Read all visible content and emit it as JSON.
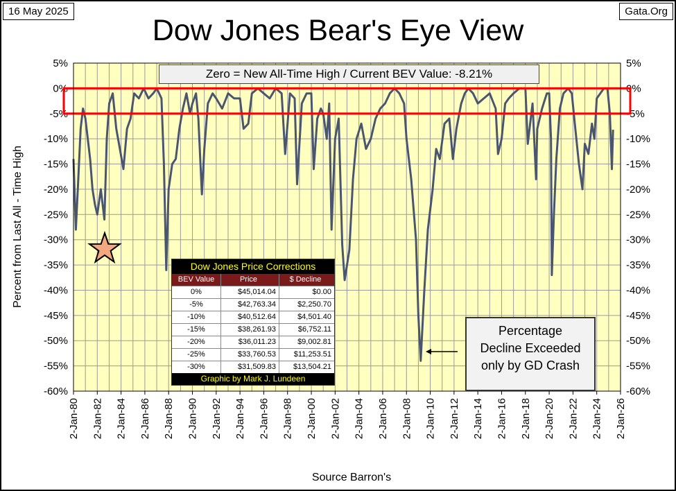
{
  "header": {
    "date": "16 May 2025",
    "site": "Gata.Org",
    "title": "Dow Jones Bear's Eye View"
  },
  "bev_note": "Zero = New All-Time High / Current BEV Value:  -8.21%",
  "callout": [
    "Percentage",
    "Decline Exceeded",
    "only by GD Crash"
  ],
  "source": "Source Barron's",
  "table": {
    "title": "Dow Jones Price Corrections",
    "headers": [
      "BEV Value",
      "Price",
      "$ Decline"
    ],
    "rows": [
      [
        "0%",
        "$45,014.04",
        "$0.00"
      ],
      [
        "-5%",
        "$42,763.34",
        "$2,250.70"
      ],
      [
        "-10%",
        "$40,512.64",
        "$4,501.40"
      ],
      [
        "-15%",
        "$38,261.93",
        "$6,752.11"
      ],
      [
        "-20%",
        "$36,011.23",
        "$9,002.81"
      ],
      [
        "-25%",
        "$33,760.53",
        "$11,253.51"
      ],
      [
        "-30%",
        "$31,509.83",
        "$13,504.21"
      ]
    ],
    "footer": "Graphic by Mark J. Lundeen"
  },
  "chart_data": {
    "type": "line",
    "ylabel": "Percent from  Last  All - Time  High",
    "xlabel": "Source Barron's",
    "ylim": [
      -60,
      5
    ],
    "yticks": [
      "5%",
      "0%",
      "-5%",
      "-10%",
      "-15%",
      "-20%",
      "-25%",
      "-30%",
      "-35%",
      "-40%",
      "-45%",
      "-50%",
      "-55%",
      "-60%"
    ],
    "xlim": [
      1980,
      2026
    ],
    "xticks": [
      "2-Jan-80",
      "2-Jan-82",
      "2-Jan-84",
      "2-Jan-86",
      "2-Jan-88",
      "2-Jan-90",
      "2-Jan-92",
      "2-Jan-94",
      "2-Jan-96",
      "2-Jan-98",
      "2-Jan-00",
      "2-Jan-02",
      "2-Jan-04",
      "2-Jan-06",
      "2-Jan-08",
      "2-Jan-10",
      "2-Jan-12",
      "2-Jan-14",
      "2-Jan-16",
      "2-Jan-18",
      "2-Jan-20",
      "2-Jan-22",
      "2-Jan-24",
      "2-Jan-26"
    ],
    "grid": true,
    "highlight_band": [
      -5,
      0
    ],
    "series": [
      {
        "x": [
          1980.0,
          1980.2,
          1980.4,
          1980.6,
          1980.8,
          1981.0,
          1981.2,
          1981.4,
          1981.6,
          1981.8,
          1982.0,
          1982.3,
          1982.6,
          1982.8,
          1983.0,
          1983.3,
          1983.6,
          1983.9,
          1984.2,
          1984.5,
          1984.8,
          1985.1,
          1985.5,
          1985.9,
          1986.3,
          1986.7,
          1987.0,
          1987.4,
          1987.6,
          1987.8,
          1988.0,
          1988.3,
          1988.6,
          1988.9,
          1989.2,
          1989.5,
          1989.8,
          1990.0,
          1990.3,
          1990.5,
          1990.8,
          1991.0,
          1991.3,
          1991.7,
          1992.0,
          1992.5,
          1993.0,
          1993.5,
          1994.0,
          1994.3,
          1994.7,
          1995.0,
          1995.5,
          1996.0,
          1996.5,
          1997.0,
          1997.5,
          1997.8,
          1998.2,
          1998.6,
          1998.8,
          1999.2,
          1999.6,
          2000.0,
          2000.2,
          2000.5,
          2000.8,
          2001.0,
          2001.3,
          2001.5,
          2001.7,
          2002.0,
          2002.3,
          2002.6,
          2002.8,
          2003.0,
          2003.2,
          2003.5,
          2003.8,
          2004.2,
          2004.6,
          2005.0,
          2005.4,
          2005.8,
          2006.2,
          2006.6,
          2007.0,
          2007.4,
          2007.8,
          2008.0,
          2008.4,
          2008.8,
          2009.0,
          2009.2,
          2009.5,
          2009.8,
          2010.2,
          2010.5,
          2010.8,
          2011.2,
          2011.6,
          2011.9,
          2012.2,
          2012.6,
          2012.9,
          2013.2,
          2013.6,
          2014.0,
          2014.5,
          2015.0,
          2015.5,
          2015.7,
          2016.0,
          2016.3,
          2016.6,
          2017.0,
          2017.5,
          2018.0,
          2018.2,
          2018.6,
          2018.9,
          2019.0,
          2019.4,
          2019.8,
          2020.0,
          2020.15,
          2020.22,
          2020.4,
          2020.6,
          2020.9,
          2021.2,
          2021.6,
          2021.9,
          2022.2,
          2022.5,
          2022.8,
          2023.0,
          2023.3,
          2023.6,
          2023.8,
          2024.0,
          2024.3,
          2024.6,
          2024.9,
          2025.1,
          2025.27,
          2025.37
        ],
        "y": [
          -14,
          -28,
          -18,
          -8,
          -4,
          -6,
          -10,
          -14,
          -20,
          -23,
          -25,
          -20,
          -26,
          -10,
          -3,
          -1,
          -8,
          -12,
          -16,
          -8,
          -6,
          -1,
          -2,
          0,
          -2,
          -1,
          0,
          -2,
          -15,
          -36,
          -20,
          -15,
          -14,
          -8,
          -4,
          -1,
          -5,
          -3,
          -1,
          -6,
          -21,
          -12,
          -3,
          -1,
          -2,
          -4,
          -1,
          -2,
          -2,
          -8,
          -7,
          -1,
          0,
          -1,
          -2,
          0,
          -1,
          -13,
          -1,
          -2,
          -19,
          -3,
          -1,
          -1,
          -16,
          -6,
          -4,
          -5,
          -10,
          -3,
          -28,
          -10,
          -6,
          -31,
          -38,
          -35,
          -32,
          -18,
          -10,
          -7,
          -12,
          -10,
          -6,
          -4,
          -3,
          -1,
          0,
          -1,
          -3,
          -10,
          -18,
          -30,
          -45,
          -54,
          -40,
          -28,
          -20,
          -12,
          -14,
          -7,
          -6,
          -14,
          -8,
          -3,
          -1,
          0,
          -1,
          -3,
          -2,
          -1,
          -4,
          -13,
          -10,
          -3,
          -2,
          -1,
          0,
          0,
          -11,
          -3,
          -18,
          -8,
          -4,
          -1,
          -1,
          -10,
          -37,
          -25,
          -14,
          -4,
          -1,
          0,
          -1,
          -8,
          -15,
          -20,
          -11,
          -13,
          -7,
          -10,
          -2,
          -1,
          0,
          0,
          -5,
          -16,
          -8.21
        ]
      }
    ]
  }
}
